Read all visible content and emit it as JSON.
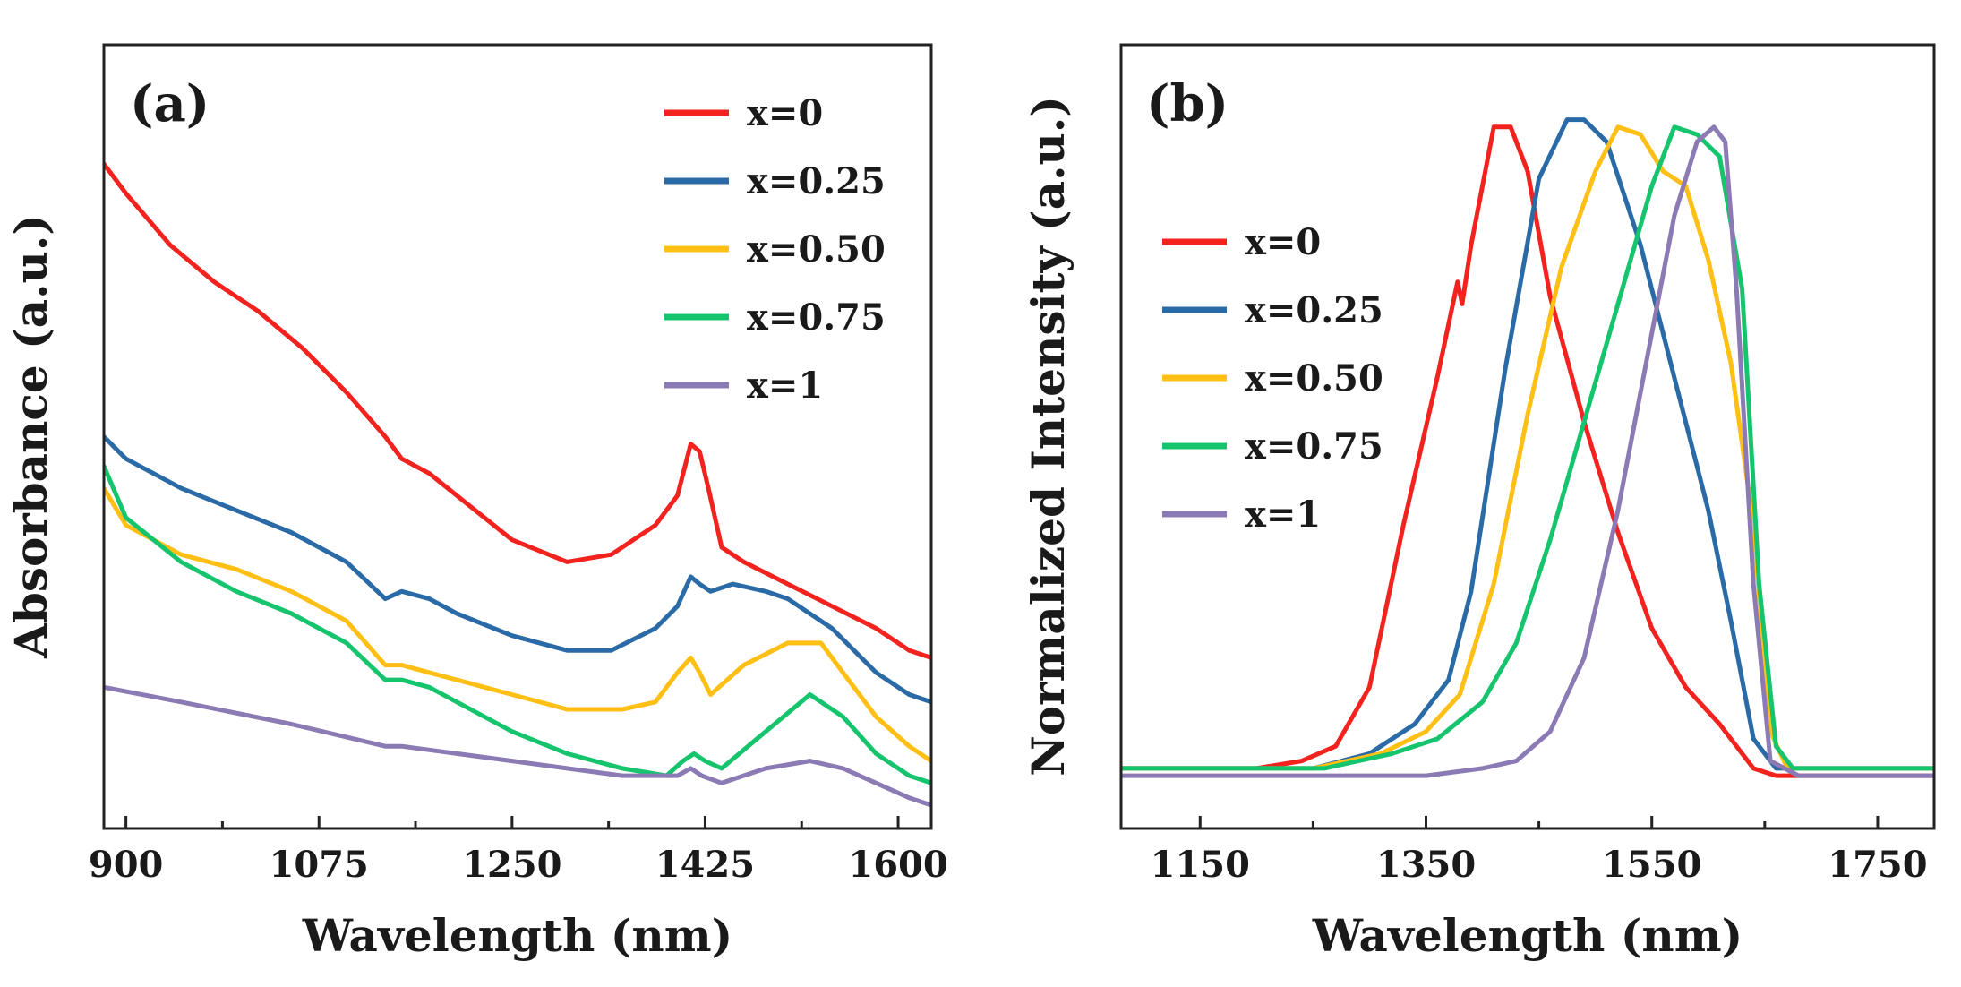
{
  "colors": {
    "x0": "#f2231f",
    "x025": "#2a6aa6",
    "x050": "#ffbf14",
    "x075": "#17c46e",
    "x1": "#8b7ab4"
  },
  "chart_data": [
    {
      "type": "line",
      "panel": "(a)",
      "xlabel": "Wavelength (nm)",
      "ylabel": "Absorbance (a.u.)",
      "xlim": [
        880,
        1630
      ],
      "ylim": [
        0,
        1
      ],
      "xticks": [
        900,
        1075,
        1250,
        1425,
        1600
      ],
      "xtick_labels": [
        "900",
        "1075",
        "1250",
        "1425",
        "1600"
      ],
      "legend_position": "top-right",
      "series": [
        {
          "name": "x=0",
          "color_key": "x0",
          "x": [
            880,
            900,
            940,
            980,
            1020,
            1060,
            1100,
            1135,
            1150,
            1175,
            1200,
            1250,
            1300,
            1340,
            1380,
            1400,
            1412,
            1420,
            1428,
            1440,
            1460,
            1500,
            1540,
            1580,
            1610,
            1630
          ],
          "y": [
            0.87,
            0.83,
            0.76,
            0.71,
            0.67,
            0.62,
            0.56,
            0.5,
            0.47,
            0.45,
            0.42,
            0.36,
            0.33,
            0.34,
            0.38,
            0.42,
            0.49,
            0.48,
            0.43,
            0.35,
            0.33,
            0.3,
            0.27,
            0.24,
            0.21,
            0.2
          ]
        },
        {
          "name": "x=0.25",
          "color_key": "x025",
          "x": [
            880,
            900,
            950,
            1000,
            1050,
            1100,
            1135,
            1150,
            1175,
            1200,
            1250,
            1300,
            1340,
            1380,
            1400,
            1412,
            1420,
            1430,
            1450,
            1480,
            1500,
            1540,
            1580,
            1610,
            1630
          ],
          "y": [
            0.5,
            0.47,
            0.43,
            0.4,
            0.37,
            0.33,
            0.28,
            0.29,
            0.28,
            0.26,
            0.23,
            0.21,
            0.21,
            0.24,
            0.27,
            0.31,
            0.3,
            0.29,
            0.3,
            0.29,
            0.28,
            0.24,
            0.18,
            0.15,
            0.14
          ]
        },
        {
          "name": "x=0.50",
          "color_key": "x050",
          "x": [
            880,
            900,
            950,
            1000,
            1050,
            1100,
            1135,
            1150,
            1175,
            1200,
            1250,
            1300,
            1350,
            1380,
            1400,
            1412,
            1420,
            1430,
            1460,
            1500,
            1530,
            1550,
            1580,
            1610,
            1630
          ],
          "y": [
            0.43,
            0.38,
            0.34,
            0.32,
            0.29,
            0.25,
            0.19,
            0.19,
            0.18,
            0.17,
            0.15,
            0.13,
            0.13,
            0.14,
            0.18,
            0.2,
            0.18,
            0.15,
            0.19,
            0.22,
            0.22,
            0.18,
            0.12,
            0.08,
            0.06
          ]
        },
        {
          "name": "x=0.75",
          "color_key": "x075",
          "x": [
            880,
            900,
            950,
            1000,
            1050,
            1100,
            1135,
            1150,
            1175,
            1200,
            1250,
            1300,
            1350,
            1390,
            1405,
            1415,
            1425,
            1440,
            1480,
            1520,
            1550,
            1580,
            1610,
            1630
          ],
          "y": [
            0.46,
            0.39,
            0.33,
            0.29,
            0.26,
            0.22,
            0.17,
            0.17,
            0.16,
            0.14,
            0.1,
            0.07,
            0.05,
            0.04,
            0.06,
            0.07,
            0.06,
            0.05,
            0.1,
            0.15,
            0.12,
            0.07,
            0.04,
            0.03
          ]
        },
        {
          "name": "x=1",
          "color_key": "x1",
          "x": [
            880,
            950,
            1050,
            1135,
            1150,
            1200,
            1250,
            1300,
            1350,
            1400,
            1412,
            1422,
            1440,
            1480,
            1520,
            1550,
            1580,
            1610,
            1630
          ],
          "y": [
            0.16,
            0.14,
            0.11,
            0.08,
            0.08,
            0.07,
            0.06,
            0.05,
            0.04,
            0.04,
            0.05,
            0.04,
            0.03,
            0.05,
            0.06,
            0.05,
            0.03,
            0.01,
            0.0
          ]
        }
      ]
    },
    {
      "type": "line",
      "panel": "(b)",
      "xlabel": "Wavelength (nm)",
      "ylabel": "Normalized Intensity (a.u.)",
      "xlim": [
        1080,
        1800
      ],
      "ylim": [
        0,
        1
      ],
      "xticks": [
        1150,
        1350,
        1550,
        1750
      ],
      "xtick_labels": [
        "1150",
        "1350",
        "1550",
        "1750"
      ],
      "legend_position": "top-left",
      "series": [
        {
          "name": "x=0",
          "color_key": "x0",
          "x": [
            1080,
            1200,
            1240,
            1270,
            1300,
            1330,
            1360,
            1378,
            1382,
            1390,
            1410,
            1425,
            1440,
            1460,
            1490,
            1520,
            1550,
            1580,
            1610,
            1640,
            1660,
            1700,
            1800
          ],
          "y": [
            0.05,
            0.05,
            0.06,
            0.08,
            0.16,
            0.38,
            0.58,
            0.71,
            0.68,
            0.76,
            0.92,
            0.92,
            0.86,
            0.69,
            0.52,
            0.37,
            0.24,
            0.16,
            0.11,
            0.05,
            0.04,
            0.04,
            0.04
          ]
        },
        {
          "name": "x=0.25",
          "color_key": "x025",
          "x": [
            1080,
            1250,
            1300,
            1340,
            1370,
            1390,
            1420,
            1450,
            1475,
            1490,
            1510,
            1540,
            1570,
            1600,
            1620,
            1640,
            1660,
            1700,
            1800
          ],
          "y": [
            0.05,
            0.05,
            0.07,
            0.11,
            0.17,
            0.29,
            0.59,
            0.85,
            0.93,
            0.93,
            0.9,
            0.76,
            0.58,
            0.4,
            0.25,
            0.09,
            0.05,
            0.05,
            0.05
          ]
        },
        {
          "name": "x=0.50",
          "color_key": "x050",
          "x": [
            1080,
            1250,
            1310,
            1350,
            1380,
            1410,
            1440,
            1470,
            1500,
            1520,
            1540,
            1560,
            1580,
            1600,
            1620,
            1640,
            1655,
            1670,
            1700,
            1800
          ],
          "y": [
            0.05,
            0.05,
            0.07,
            0.1,
            0.15,
            0.3,
            0.53,
            0.73,
            0.86,
            0.92,
            0.91,
            0.86,
            0.84,
            0.74,
            0.6,
            0.38,
            0.1,
            0.05,
            0.05,
            0.05
          ]
        },
        {
          "name": "x=0.75",
          "color_key": "x075",
          "x": [
            1080,
            1260,
            1320,
            1360,
            1400,
            1430,
            1460,
            1490,
            1520,
            1550,
            1570,
            1590,
            1610,
            1630,
            1645,
            1660,
            1675,
            1700,
            1800
          ],
          "y": [
            0.05,
            0.05,
            0.07,
            0.09,
            0.14,
            0.22,
            0.36,
            0.52,
            0.68,
            0.84,
            0.92,
            0.91,
            0.88,
            0.7,
            0.3,
            0.08,
            0.05,
            0.05,
            0.05
          ]
        },
        {
          "name": "x=1",
          "color_key": "x1",
          "x": [
            1080,
            1350,
            1400,
            1430,
            1460,
            1490,
            1520,
            1545,
            1570,
            1590,
            1605,
            1615,
            1625,
            1640,
            1655,
            1680,
            1800
          ],
          "y": [
            0.04,
            0.04,
            0.05,
            0.06,
            0.1,
            0.2,
            0.4,
            0.6,
            0.8,
            0.9,
            0.92,
            0.9,
            0.7,
            0.3,
            0.06,
            0.04,
            0.04
          ]
        }
      ]
    }
  ]
}
